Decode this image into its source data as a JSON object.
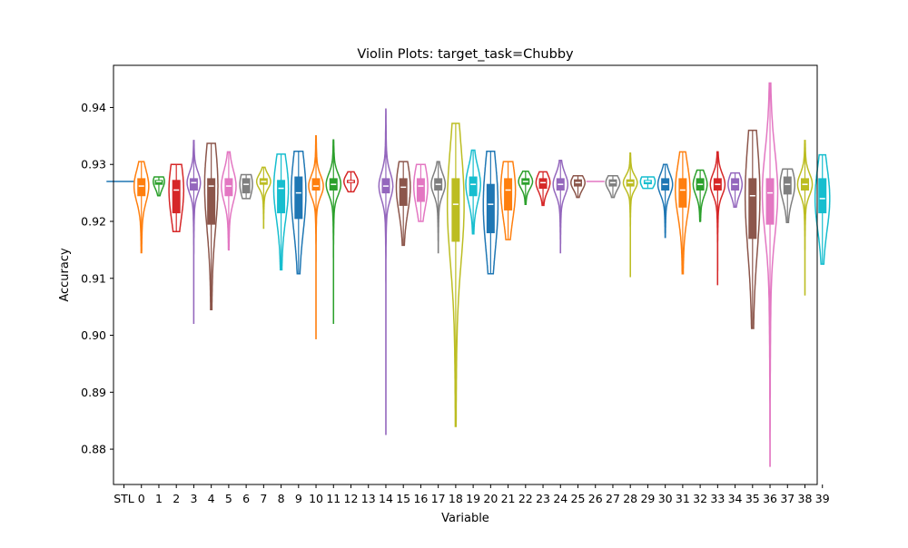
{
  "chart_data": {
    "type": "violin",
    "title": "Violin Plots: target_task=Chubby",
    "xlabel": "Variable",
    "ylabel": "Accuracy",
    "ylim": [
      0.8738,
      0.9474
    ],
    "yticks": [
      0.88,
      0.89,
      0.9,
      0.91,
      0.92,
      0.93,
      0.94
    ],
    "ytick_labels": [
      "0.88",
      "0.89",
      "0.90",
      "0.91",
      "0.92",
      "0.93",
      "0.94"
    ],
    "grid": false,
    "categories": [
      "STL",
      "0",
      "1",
      "2",
      "3",
      "4",
      "5",
      "6",
      "7",
      "8",
      "9",
      "10",
      "11",
      "12",
      "13",
      "14",
      "15",
      "16",
      "17",
      "18",
      "19",
      "20",
      "21",
      "22",
      "23",
      "24",
      "25",
      "26",
      "27",
      "28",
      "29",
      "30",
      "31",
      "32",
      "33",
      "34",
      "35",
      "36",
      "37",
      "38",
      "39"
    ],
    "series": [
      {
        "category": "STL",
        "color": "#1f77b4",
        "min": 0.927,
        "q1": 0.927,
        "median": 0.927,
        "q3": 0.927,
        "max": 0.927,
        "half_width": 1.0
      },
      {
        "category": "0",
        "color": "#ff7f0e",
        "min": 0.9145,
        "q1": 0.9245,
        "median": 0.9262,
        "q3": 0.9275,
        "max": 0.9305,
        "half_width": 0.42
      },
      {
        "category": "1",
        "color": "#2ca02c",
        "min": 0.9245,
        "q1": 0.9265,
        "median": 0.927,
        "q3": 0.9272,
        "max": 0.9278,
        "half_width": 0.32
      },
      {
        "category": "2",
        "color": "#d62728",
        "min": 0.9182,
        "q1": 0.9215,
        "median": 0.9255,
        "q3": 0.9272,
        "max": 0.93,
        "half_width": 0.42
      },
      {
        "category": "3",
        "color": "#9467bd",
        "min": 0.902,
        "q1": 0.9255,
        "median": 0.9268,
        "q3": 0.9275,
        "max": 0.9342,
        "half_width": 0.38
      },
      {
        "category": "4",
        "color": "#8c564b",
        "min": 0.9045,
        "q1": 0.9195,
        "median": 0.9262,
        "q3": 0.9275,
        "max": 0.9337,
        "half_width": 0.38
      },
      {
        "category": "5",
        "color": "#e377c2",
        "min": 0.915,
        "q1": 0.9245,
        "median": 0.9262,
        "q3": 0.9275,
        "max": 0.9322,
        "half_width": 0.42
      },
      {
        "category": "6",
        "color": "#7f7f7f",
        "min": 0.924,
        "q1": 0.925,
        "median": 0.9265,
        "q3": 0.9275,
        "max": 0.9282,
        "half_width": 0.36
      },
      {
        "category": "7",
        "color": "#bcbd22",
        "min": 0.9188,
        "q1": 0.9265,
        "median": 0.927,
        "q3": 0.9275,
        "max": 0.9295,
        "half_width": 0.4
      },
      {
        "category": "8",
        "color": "#17becf",
        "min": 0.9115,
        "q1": 0.9215,
        "median": 0.9258,
        "q3": 0.9272,
        "max": 0.9318,
        "half_width": 0.42
      },
      {
        "category": "9",
        "color": "#1f77b4",
        "min": 0.9108,
        "q1": 0.9205,
        "median": 0.925,
        "q3": 0.9278,
        "max": 0.9323,
        "half_width": 0.42
      },
      {
        "category": "10",
        "color": "#ff7f0e",
        "min": 0.8993,
        "q1": 0.9255,
        "median": 0.9262,
        "q3": 0.9275,
        "max": 0.935,
        "half_width": 0.42
      },
      {
        "category": "11",
        "color": "#2ca02c",
        "min": 0.902,
        "q1": 0.9255,
        "median": 0.9265,
        "q3": 0.9275,
        "max": 0.9343,
        "half_width": 0.42
      },
      {
        "category": "12",
        "color": "#d62728",
        "min": 0.9252,
        "q1": 0.9268,
        "median": 0.927,
        "q3": 0.9272,
        "max": 0.9287,
        "half_width": 0.4
      },
      {
        "category": "13",
        "color": "#9467bd",
        "min": 0.927,
        "q1": 0.927,
        "median": 0.927,
        "q3": 0.927,
        "max": 0.927,
        "half_width": 0.0
      },
      {
        "category": "14",
        "color": "#9467bd",
        "min": 0.8825,
        "q1": 0.925,
        "median": 0.9262,
        "q3": 0.9275,
        "max": 0.9397,
        "half_width": 0.4
      },
      {
        "category": "15",
        "color": "#8c564b",
        "min": 0.9158,
        "q1": 0.9228,
        "median": 0.926,
        "q3": 0.9275,
        "max": 0.9305,
        "half_width": 0.4
      },
      {
        "category": "16",
        "color": "#e377c2",
        "min": 0.92,
        "q1": 0.9235,
        "median": 0.9262,
        "q3": 0.9275,
        "max": 0.93,
        "half_width": 0.4
      },
      {
        "category": "17",
        "color": "#7f7f7f",
        "min": 0.9145,
        "q1": 0.9255,
        "median": 0.9265,
        "q3": 0.9275,
        "max": 0.9305,
        "half_width": 0.4
      },
      {
        "category": "18",
        "color": "#bcbd22",
        "min": 0.884,
        "q1": 0.9165,
        "median": 0.923,
        "q3": 0.9275,
        "max": 0.9372,
        "half_width": 0.48
      },
      {
        "category": "19",
        "color": "#17becf",
        "min": 0.9178,
        "q1": 0.9245,
        "median": 0.9265,
        "q3": 0.9278,
        "max": 0.9325,
        "half_width": 0.42
      },
      {
        "category": "20",
        "color": "#1f77b4",
        "min": 0.9108,
        "q1": 0.918,
        "median": 0.923,
        "q3": 0.9265,
        "max": 0.9323,
        "half_width": 0.42
      },
      {
        "category": "21",
        "color": "#ff7f0e",
        "min": 0.9168,
        "q1": 0.922,
        "median": 0.9255,
        "q3": 0.9275,
        "max": 0.9305,
        "half_width": 0.42
      },
      {
        "category": "22",
        "color": "#2ca02c",
        "min": 0.923,
        "q1": 0.9265,
        "median": 0.927,
        "q3": 0.9275,
        "max": 0.9288,
        "half_width": 0.4
      },
      {
        "category": "23",
        "color": "#d62728",
        "min": 0.9228,
        "q1": 0.9258,
        "median": 0.9268,
        "q3": 0.9275,
        "max": 0.9287,
        "half_width": 0.4
      },
      {
        "category": "24",
        "color": "#9467bd",
        "min": 0.9145,
        "q1": 0.9255,
        "median": 0.9265,
        "q3": 0.9275,
        "max": 0.9307,
        "half_width": 0.42
      },
      {
        "category": "25",
        "color": "#8c564b",
        "min": 0.9242,
        "q1": 0.9262,
        "median": 0.9268,
        "q3": 0.9273,
        "max": 0.928,
        "half_width": 0.4
      },
      {
        "category": "26",
        "color": "#e377c2",
        "min": 0.927,
        "q1": 0.927,
        "median": 0.927,
        "q3": 0.927,
        "max": 0.927,
        "half_width": 0.52
      },
      {
        "category": "27",
        "color": "#7f7f7f",
        "min": 0.9242,
        "q1": 0.9262,
        "median": 0.9268,
        "q3": 0.9273,
        "max": 0.928,
        "half_width": 0.4
      },
      {
        "category": "28",
        "color": "#bcbd22",
        "min": 0.9102,
        "q1": 0.9262,
        "median": 0.9268,
        "q3": 0.9273,
        "max": 0.932,
        "half_width": 0.4
      },
      {
        "category": "29",
        "color": "#17becf",
        "min": 0.9258,
        "q1": 0.9266,
        "median": 0.927,
        "q3": 0.9272,
        "max": 0.9278,
        "half_width": 0.42
      },
      {
        "category": "30",
        "color": "#1f77b4",
        "min": 0.9172,
        "q1": 0.9255,
        "median": 0.9265,
        "q3": 0.9275,
        "max": 0.93,
        "half_width": 0.42
      },
      {
        "category": "31",
        "color": "#ff7f0e",
        "min": 0.9108,
        "q1": 0.9225,
        "median": 0.9255,
        "q3": 0.9275,
        "max": 0.9322,
        "half_width": 0.42
      },
      {
        "category": "32",
        "color": "#2ca02c",
        "min": 0.92,
        "q1": 0.9255,
        "median": 0.9265,
        "q3": 0.9275,
        "max": 0.929,
        "half_width": 0.4
      },
      {
        "category": "33",
        "color": "#d62728",
        "min": 0.9088,
        "q1": 0.9255,
        "median": 0.9265,
        "q3": 0.9275,
        "max": 0.9322,
        "half_width": 0.42
      },
      {
        "category": "34",
        "color": "#9467bd",
        "min": 0.9225,
        "q1": 0.9255,
        "median": 0.9265,
        "q3": 0.9275,
        "max": 0.9285,
        "half_width": 0.4
      },
      {
        "category": "35",
        "color": "#8c564b",
        "min": 0.9012,
        "q1": 0.917,
        "median": 0.9245,
        "q3": 0.9275,
        "max": 0.936,
        "half_width": 0.42
      },
      {
        "category": "36",
        "color": "#e377c2",
        "min": 0.877,
        "q1": 0.9195,
        "median": 0.925,
        "q3": 0.9275,
        "max": 0.9443,
        "half_width": 0.44
      },
      {
        "category": "37",
        "color": "#7f7f7f",
        "min": 0.9198,
        "q1": 0.9248,
        "median": 0.9265,
        "q3": 0.9278,
        "max": 0.9292,
        "half_width": 0.42
      },
      {
        "category": "38",
        "color": "#bcbd22",
        "min": 0.907,
        "q1": 0.9255,
        "median": 0.9265,
        "q3": 0.9275,
        "max": 0.9342,
        "half_width": 0.42
      },
      {
        "category": "39",
        "color": "#17becf",
        "min": 0.9125,
        "q1": 0.9215,
        "median": 0.924,
        "q3": 0.9275,
        "max": 0.9317,
        "half_width": 0.42
      }
    ]
  }
}
